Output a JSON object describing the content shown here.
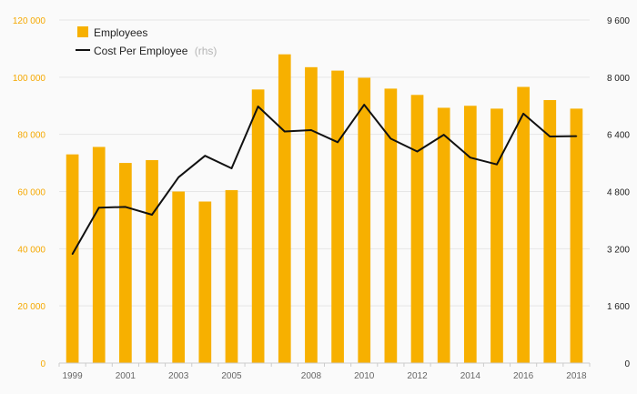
{
  "colors": {
    "bar": "#f7b000",
    "line": "#111111",
    "left_axis_text": "#f5a800",
    "right_axis_text": "#222222"
  },
  "legend": {
    "employees_label": "Employees",
    "cost_label": "Cost Per Employee",
    "cost_note": "(rhs)",
    "placement": "top-left"
  },
  "chart_data": {
    "type": "bar",
    "title": "",
    "grid": true,
    "x": [
      1999,
      2000,
      2001,
      2002,
      2003,
      2004,
      2005,
      2006,
      2007,
      2008,
      2009,
      2010,
      2011,
      2012,
      2013,
      2014,
      2015,
      2016,
      2017,
      2018
    ],
    "x_tick_labels": [
      "1999",
      "2001",
      "2003",
      "2005",
      "2008",
      "2010",
      "2012",
      "2014",
      "2016",
      "2018"
    ],
    "y_left": {
      "ylim": [
        0,
        120000
      ],
      "ticks": [
        0,
        20000,
        40000,
        60000,
        80000,
        100000,
        120000
      ],
      "tick_labels": [
        "0",
        "20 000",
        "40 000",
        "60 000",
        "80 000",
        "100 000",
        "120 000"
      ]
    },
    "y_right": {
      "ylim": [
        0,
        9600
      ],
      "ticks": [
        0,
        1600,
        3200,
        4800,
        6400,
        8000,
        9600
      ],
      "tick_labels": [
        "0",
        "1 600",
        "3 200",
        "4 800",
        "6 400",
        "8 000",
        "9 600"
      ]
    },
    "series": [
      {
        "name": "Employees",
        "type": "bar",
        "axis": "left",
        "values": [
          73000,
          75600,
          70000,
          71000,
          60000,
          56500,
          60500,
          95700,
          108000,
          103500,
          102300,
          99800,
          96000,
          93800,
          89300,
          90000,
          89000,
          96600,
          92000,
          89000
        ]
      },
      {
        "name": "Cost Per Employee",
        "type": "line",
        "axis": "right",
        "values": [
          3050,
          4350,
          4370,
          4150,
          5200,
          5800,
          5450,
          7180,
          6480,
          6520,
          6180,
          7230,
          6280,
          5920,
          6390,
          5750,
          5560,
          6980,
          6340,
          6350
        ]
      }
    ]
  }
}
